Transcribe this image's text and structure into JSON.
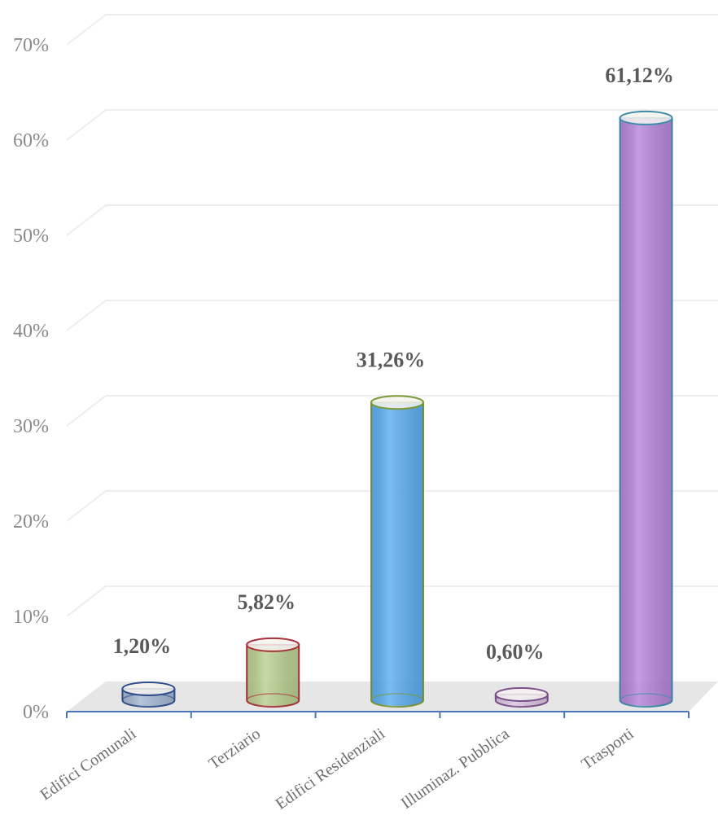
{
  "chart_data": {
    "type": "bar",
    "title": "",
    "xlabel": "",
    "ylabel": "",
    "categories": [
      "Edifici Comunali",
      "Terziario",
      "Edifici Residenziali",
      "Illuminaz. Pubblica",
      "Trasporti"
    ],
    "values": [
      1.2,
      5.82,
      31.26,
      0.6,
      61.12
    ],
    "value_labels": [
      "1,20%",
      "5,82%",
      "31,26%",
      "0,60%",
      "61,12%"
    ],
    "y_ticks": [
      0,
      10,
      20,
      30,
      40,
      50,
      60,
      70
    ],
    "y_tick_labels": [
      "0%",
      "10%",
      "20%",
      "30%",
      "40%",
      "50%",
      "60%",
      "70%"
    ],
    "ylim": [
      0,
      70
    ],
    "grid": true,
    "legend": "none",
    "colors": {
      "fills": [
        "#9db3cf",
        "#b5cc86",
        "#4da6ee",
        "#d7c2dd",
        "#b07ad8"
      ],
      "outlines": [
        "#2f4f8a",
        "#a8323a",
        "#7b9a35",
        "#7a4f8c",
        "#3f8ea8"
      ],
      "axis": "#4a76b8",
      "grid": "#ededed",
      "floor": "#e6e6e6"
    }
  }
}
